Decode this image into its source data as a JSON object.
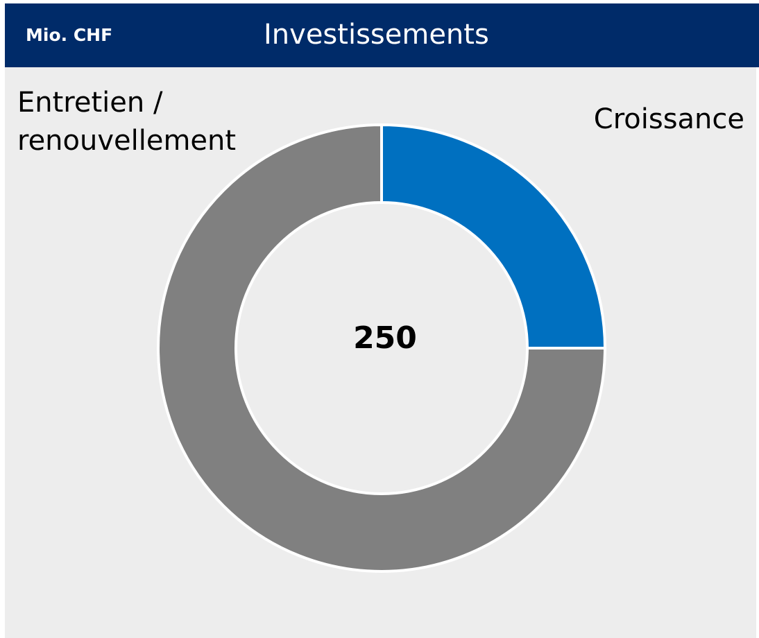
{
  "chart_data": {
    "type": "donut",
    "unit": "Mio. CHF",
    "title": "Investissements",
    "center_label": "250",
    "categories": [
      "Croissance",
      "Entretien / renouvellement"
    ],
    "values": [
      62.5,
      187.5
    ],
    "colors": [
      "#0070c0",
      "#808080"
    ]
  }
}
